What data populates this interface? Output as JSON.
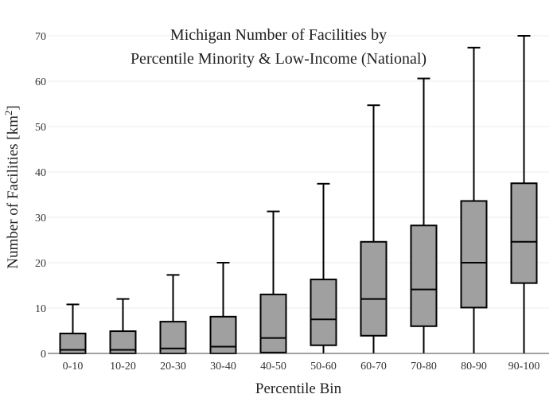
{
  "chart_data": {
    "type": "box",
    "title_lines": [
      "Michigan Number of Facilities by",
      "Percentile Minority & Low-Income (National)"
    ],
    "xlabel": "Percentile Bin",
    "ylabel_main": "Number of Facilities  [km",
    "ylabel_sup": "2",
    "ylabel_end": "]",
    "ylim": [
      0,
      70
    ],
    "yticks": [
      0,
      10,
      20,
      30,
      40,
      50,
      60,
      70
    ],
    "grid": true,
    "categories": [
      "0-10",
      "10-20",
      "20-30",
      "30-40",
      "40-50",
      "50-60",
      "60-70",
      "70-80",
      "80-90",
      "90-100"
    ],
    "boxes": [
      {
        "min": 0,
        "q1": 0,
        "median": 0.8,
        "q3": 4.4,
        "max": 10.8
      },
      {
        "min": 0,
        "q1": 0,
        "median": 0.8,
        "q3": 4.9,
        "max": 12
      },
      {
        "min": 0,
        "q1": 0,
        "median": 1.1,
        "q3": 7,
        "max": 17.3
      },
      {
        "min": 0,
        "q1": 0,
        "median": 1.5,
        "q3": 8.1,
        "max": 20
      },
      {
        "min": 0,
        "q1": 0.2,
        "median": 3.4,
        "q3": 13,
        "max": 31.3
      },
      {
        "min": 0,
        "q1": 1.8,
        "median": 7.5,
        "q3": 16.3,
        "max": 37.4
      },
      {
        "min": 0,
        "q1": 3.9,
        "median": 12,
        "q3": 24.6,
        "max": 54.7
      },
      {
        "min": 0,
        "q1": 6,
        "median": 14.1,
        "q3": 28.2,
        "max": 60.6
      },
      {
        "min": 0,
        "q1": 10.1,
        "median": 20,
        "q3": 33.6,
        "max": 67.4
      },
      {
        "min": 0,
        "q1": 15.5,
        "median": 24.6,
        "q3": 37.5,
        "max": 70
      }
    ]
  }
}
